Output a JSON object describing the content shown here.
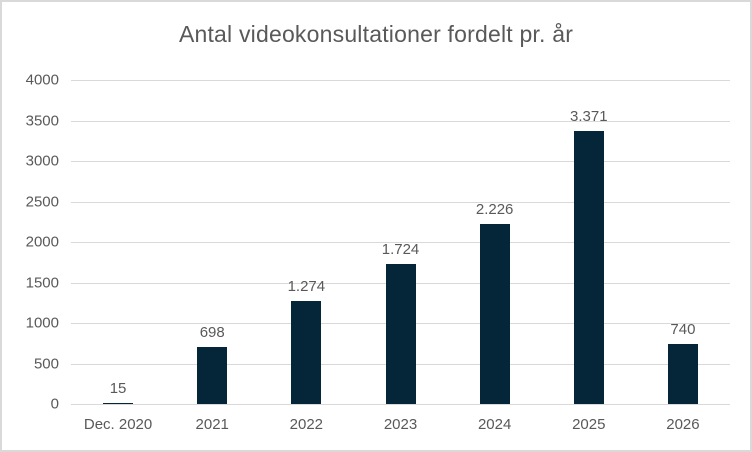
{
  "chart_data": {
    "type": "bar",
    "title": "Antal videokonsultationer fordelt pr. år",
    "categories": [
      "Dec. 2020",
      "2021",
      "2022",
      "2023",
      "2024",
      "2025",
      "2026"
    ],
    "values": [
      15,
      698,
      1274,
      1724,
      2226,
      3371,
      740
    ],
    "value_labels": [
      "15",
      "698",
      "1.274",
      "1.724",
      "2.226",
      "3.371",
      "740"
    ],
    "xlabel": "",
    "ylabel": "",
    "ylim": [
      0,
      4000
    ],
    "yticks": [
      0,
      500,
      1000,
      1500,
      2000,
      2500,
      3000,
      3500,
      4000
    ],
    "grid": true,
    "legend": false,
    "colors": {
      "bar": "#052638",
      "text": "#595959",
      "gridline": "#d9d9d9",
      "border": "#d9d9d9",
      "background": "#ffffff"
    }
  }
}
